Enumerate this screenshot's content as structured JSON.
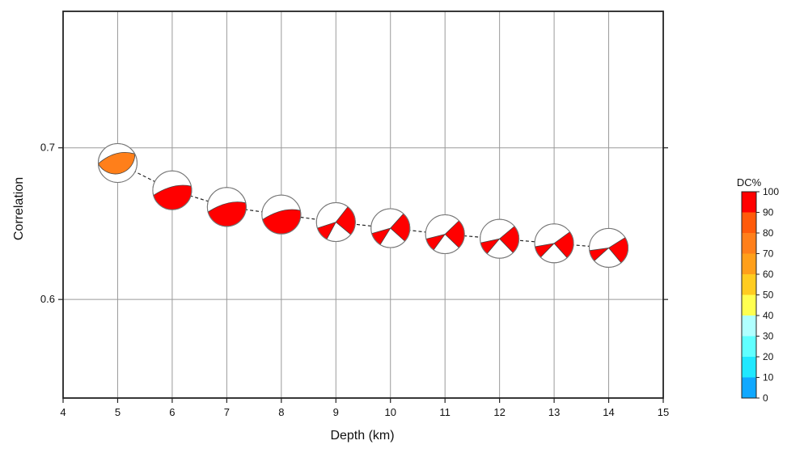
{
  "chart_data": {
    "type": "scatter",
    "title": "",
    "xlabel": "Depth (km)",
    "ylabel": "Correlation",
    "xlim": [
      4,
      15
    ],
    "ylim": [
      0.535,
      0.79
    ],
    "x_ticks": [
      4,
      5,
      6,
      7,
      8,
      9,
      10,
      11,
      12,
      13,
      14,
      15
    ],
    "y_ticks": [
      0.6,
      0.7
    ],
    "grid": true,
    "connector": "dashed",
    "marker": "beachball",
    "series": [
      {
        "x": [
          5,
          6,
          7,
          8,
          9,
          10,
          11,
          12,
          13,
          14
        ],
        "y": [
          0.69,
          0.672,
          0.661,
          0.656,
          0.651,
          0.647,
          0.643,
          0.64,
          0.637,
          0.634
        ],
        "dc_percent": [
          78,
          100,
          100,
          100,
          100,
          100,
          100,
          100,
          100,
          100
        ],
        "colors": [
          "#ff7f1a",
          "#ff0000",
          "#ff0000",
          "#ff0000",
          "#ff0000",
          "#ff0000",
          "#ff0000",
          "#ff0000",
          "#ff0000",
          "#ff0000"
        ]
      }
    ],
    "colorbar": {
      "label": "DC%",
      "ticks": [
        "100",
        "90",
        "80",
        "70",
        "60",
        "50",
        "40",
        "30",
        "20",
        "10",
        "0"
      ],
      "colors": [
        "#ff0000",
        "#ff5a0a",
        "#ff7f1a",
        "#ff9f1a",
        "#ffcc20",
        "#ffff50",
        "#b0ffff",
        "#60ffff",
        "#20e8ff",
        "#10a8ff",
        "#1f3fff"
      ],
      "placement": "right"
    }
  }
}
